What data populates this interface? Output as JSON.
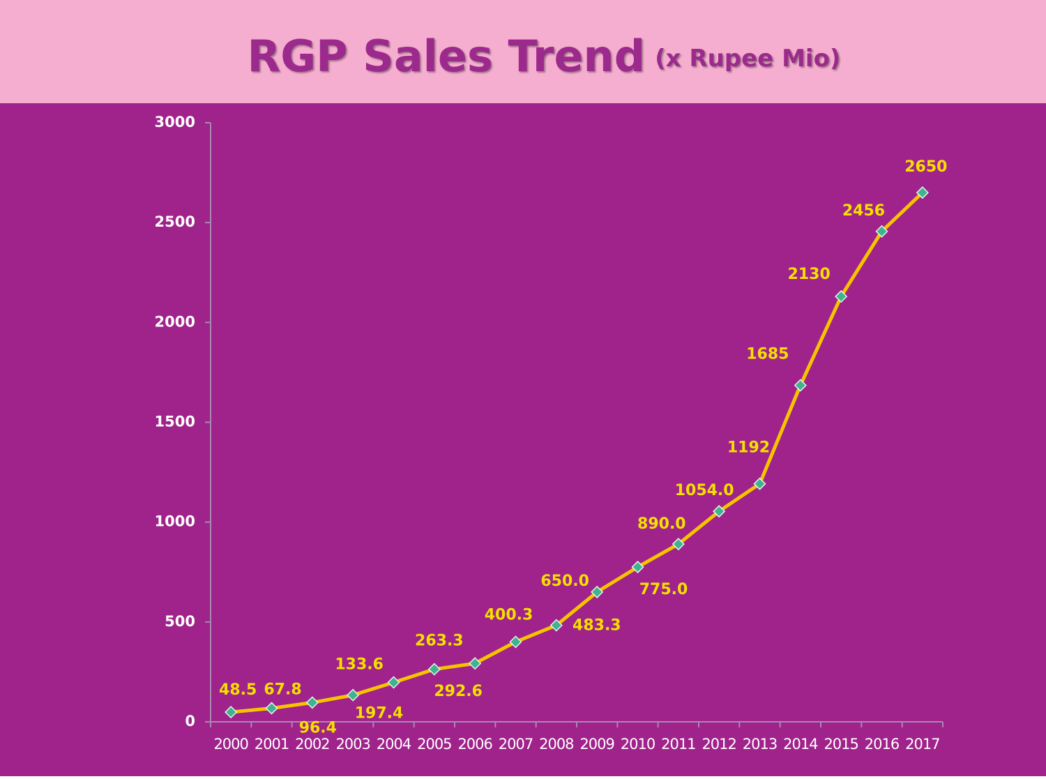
{
  "chart_data": {
    "type": "line",
    "title": "RGP Sales Trend",
    "subtitle": "(x Rupee Mio)",
    "categories": [
      "2000",
      "2001",
      "2002",
      "2003",
      "2004",
      "2005",
      "2006",
      "2007",
      "2008",
      "2009",
      "2010",
      "2011",
      "2012",
      "2013",
      "2014",
      "2015",
      "2016",
      "2017"
    ],
    "series": [
      {
        "color": "#f5c400",
        "values": [
          48.5,
          67.8,
          96.4,
          133.6,
          197.4,
          263.3,
          292.6,
          400.3,
          483.3,
          650.0,
          775.0,
          890.0,
          1054.0,
          1192,
          1685,
          2130,
          2456,
          2650
        ],
        "value_labels": [
          "48.5",
          "67.8",
          "96.4",
          "133.6",
          "197.4",
          "263.3",
          "292.6",
          "400.3",
          "483.3",
          "650.0",
          "775.0",
          "890.0",
          "1054.0",
          "1192",
          "1685",
          "2130",
          "2456",
          "2650"
        ]
      }
    ],
    "ylim": [
      0,
      3000
    ],
    "yticks": [
      0,
      500,
      1000,
      1500,
      2000,
      2500,
      3000
    ],
    "grid": false
  }
}
